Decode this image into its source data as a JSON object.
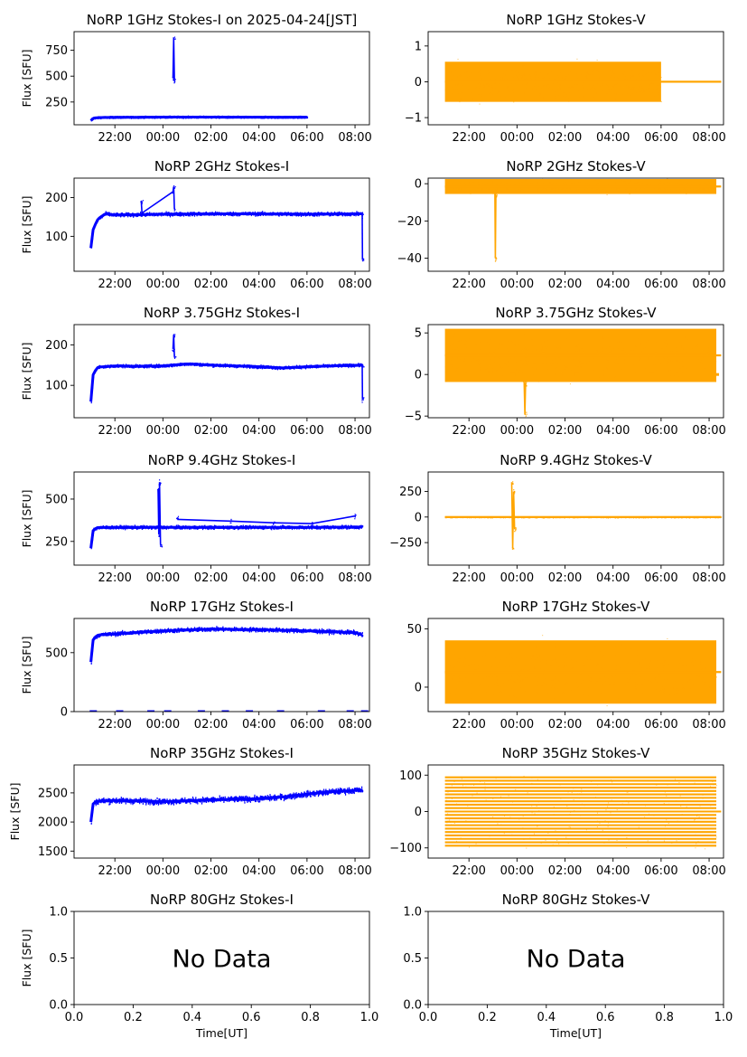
{
  "figure": {
    "suptitle_note": "",
    "colors": {
      "stokes_i": "#0000ff",
      "stokes_v": "#ffa500",
      "axis": "#000000"
    }
  },
  "chart_data": [
    {
      "id": "1ghz_i",
      "type": "scatter",
      "title": "NoRP 1GHz Stokes-I on 2025-04-24[JST]",
      "ylabel": "Flux [SFU]",
      "xlabel": "",
      "color": "#0000ff",
      "kind": "I",
      "xlim": [
        20.3,
        32.6
      ],
      "ylim": [
        30,
        930
      ],
      "x_ticks": [
        22,
        24,
        26,
        28,
        30,
        32
      ],
      "x_tick_labels": [
        "22:00",
        "00:00",
        "02:00",
        "04:00",
        "06:00",
        "08:00"
      ],
      "y_ticks": [
        250,
        500,
        750
      ],
      "y_tick_labels": [
        "250",
        "500",
        "750"
      ],
      "data_range": [
        21.0,
        30.0
      ],
      "series": [
        {
          "name": "baseline",
          "x": [
            21.0,
            21.1,
            21.4,
            22.0,
            23.0,
            24.0,
            24.5,
            26.0,
            28.0,
            30.0
          ],
          "y": [
            70,
            95,
            100,
            102,
            103,
            104,
            104,
            104,
            103,
            103
          ],
          "spread": 6
        },
        {
          "name": "burst",
          "x": [
            24.42,
            24.45,
            24.48
          ],
          "y": [
            480,
            870,
            460
          ]
        }
      ]
    },
    {
      "id": "1ghz_v",
      "type": "scatter",
      "title": "NoRP 1GHz Stokes-V",
      "ylabel": "",
      "xlabel": "",
      "color": "#ffa500",
      "kind": "V",
      "xlim": [
        20.3,
        32.6
      ],
      "ylim": [
        -1.2,
        1.4
      ],
      "x_ticks": [
        22,
        24,
        26,
        28,
        30,
        32
      ],
      "x_tick_labels": [
        "22:00",
        "00:00",
        "02:00",
        "04:00",
        "06:00",
        "08:00"
      ],
      "y_ticks": [
        -1,
        0,
        1
      ],
      "y_tick_labels": [
        "−1",
        "0",
        "1"
      ],
      "data_range": [
        21.0,
        32.5
      ],
      "series": [
        {
          "name": "noise_band",
          "x": [
            21.0,
            30.0
          ],
          "y": [
            0,
            0
          ],
          "spread": 0.35
        },
        {
          "name": "flat",
          "x": [
            30.0,
            32.5
          ],
          "y": [
            0,
            0
          ],
          "spread": 0
        }
      ]
    },
    {
      "id": "2ghz_i",
      "type": "scatter",
      "title": "NoRP 2GHz Stokes-I",
      "ylabel": "Flux [SFU]",
      "xlabel": "",
      "color": "#0000ff",
      "kind": "I",
      "xlim": [
        20.3,
        32.6
      ],
      "ylim": [
        10,
        250
      ],
      "x_ticks": [
        22,
        24,
        26,
        28,
        30,
        32
      ],
      "x_tick_labels": [
        "22:00",
        "00:00",
        "02:00",
        "04:00",
        "06:00",
        "08:00"
      ],
      "y_ticks": [
        100,
        200
      ],
      "y_tick_labels": [
        "100",
        "200"
      ],
      "data_range": [
        21.0,
        32.3
      ],
      "series": [
        {
          "name": "baseline",
          "x": [
            21.0,
            21.1,
            21.3,
            21.6,
            22.0,
            23.0,
            24.0,
            26.0,
            28.0,
            30.0,
            32.3
          ],
          "y": [
            70,
            120,
            145,
            158,
            155,
            156,
            157,
            158,
            158,
            157,
            158
          ],
          "spread": 4
        },
        {
          "name": "burst",
          "x": [
            23.1,
            23.13,
            24.42,
            24.45,
            24.48
          ],
          "y": [
            190,
            160,
            215,
            228,
            170
          ]
        },
        {
          "name": "dropout",
          "x": [
            32.3,
            32.31
          ],
          "y": [
            155,
            40
          ]
        }
      ]
    },
    {
      "id": "2ghz_v",
      "type": "scatter",
      "title": "NoRP 2GHz Stokes-V",
      "ylabel": "",
      "xlabel": "",
      "color": "#ffa500",
      "kind": "V",
      "xlim": [
        20.3,
        32.6
      ],
      "ylim": [
        -47,
        3
      ],
      "x_ticks": [
        22,
        24,
        26,
        28,
        30,
        32
      ],
      "x_tick_labels": [
        "22:00",
        "00:00",
        "02:00",
        "04:00",
        "06:00",
        "08:00"
      ],
      "y_ticks": [
        -40,
        -20,
        0
      ],
      "y_tick_labels": [
        "−40",
        "−20",
        "0"
      ],
      "data_range": [
        21.0,
        32.5
      ],
      "series": [
        {
          "name": "noise_band",
          "x": [
            21.0,
            32.3
          ],
          "y": [
            -1.5,
            -1.5
          ],
          "spread": 2.5
        },
        {
          "name": "dip",
          "x": [
            23.08,
            23.1,
            23.12
          ],
          "y": [
            -5,
            -40,
            -6
          ]
        }
      ]
    },
    {
      "id": "3_75ghz_i",
      "type": "scatter",
      "title": "NoRP 3.75GHz Stokes-I",
      "ylabel": "Flux [SFU]",
      "xlabel": "",
      "color": "#0000ff",
      "kind": "I",
      "xlim": [
        20.3,
        32.6
      ],
      "ylim": [
        20,
        250
      ],
      "x_ticks": [
        22,
        24,
        26,
        28,
        30,
        32
      ],
      "x_tick_labels": [
        "22:00",
        "00:00",
        "02:00",
        "04:00",
        "06:00",
        "08:00"
      ],
      "y_ticks": [
        100,
        200
      ],
      "y_tick_labels": [
        "100",
        "200"
      ],
      "data_range": [
        21.0,
        32.3
      ],
      "series": [
        {
          "name": "baseline",
          "x": [
            21.0,
            21.1,
            21.3,
            22.0,
            23.0,
            24.0,
            25.0,
            26.0,
            27.0,
            28.0,
            29.0,
            30.0,
            31.0,
            32.3
          ],
          "y": [
            60,
            130,
            145,
            148,
            147,
            148,
            153,
            150,
            148,
            146,
            143,
            146,
            148,
            150
          ],
          "spread": 3
        },
        {
          "name": "burst",
          "x": [
            24.42,
            24.45,
            24.48
          ],
          "y": [
            190,
            225,
            170
          ]
        },
        {
          "name": "dropout",
          "x": [
            32.3,
            32.31
          ],
          "y": [
            150,
            65
          ]
        }
      ]
    },
    {
      "id": "3_75ghz_v",
      "type": "scatter",
      "title": "NoRP 3.75GHz Stokes-V",
      "ylabel": "",
      "xlabel": "",
      "color": "#ffa500",
      "kind": "V",
      "xlim": [
        20.3,
        32.6
      ],
      "ylim": [
        -5.2,
        6
      ],
      "x_ticks": [
        22,
        24,
        26,
        28,
        30,
        32
      ],
      "x_tick_labels": [
        "22:00",
        "00:00",
        "02:00",
        "04:00",
        "06:00",
        "08:00"
      ],
      "y_ticks": [
        -5,
        0,
        5
      ],
      "y_tick_labels": [
        "−5",
        "0",
        "5"
      ],
      "data_range": [
        21.0,
        32.5
      ],
      "series": [
        {
          "name": "noise_band",
          "x": [
            21.0,
            32.3
          ],
          "y": [
            2.3,
            2.3
          ],
          "spread": 2.0
        },
        {
          "name": "dip",
          "x": [
            24.3,
            24.33,
            24.36
          ],
          "y": [
            -1,
            -4.8,
            -1
          ]
        },
        {
          "name": "gaps",
          "x": [
            23.8,
            26.5,
            29.6,
            32.3
          ],
          "y": [
            0,
            0,
            0,
            0
          ]
        }
      ]
    },
    {
      "id": "9_4ghz_i",
      "type": "scatter",
      "title": "NoRP 9.4GHz Stokes-I",
      "ylabel": "Flux [SFU]",
      "xlabel": "",
      "color": "#0000ff",
      "kind": "I",
      "xlim": [
        20.3,
        32.6
      ],
      "ylim": [
        110,
        660
      ],
      "x_ticks": [
        22,
        24,
        26,
        28,
        30,
        32
      ],
      "x_tick_labels": [
        "22:00",
        "00:00",
        "02:00",
        "04:00",
        "06:00",
        "08:00"
      ],
      "y_ticks": [
        250,
        500
      ],
      "y_tick_labels": [
        "250",
        "500"
      ],
      "data_range": [
        21.0,
        32.3
      ],
      "series": [
        {
          "name": "baseline",
          "x": [
            21.0,
            21.1,
            21.3,
            22.0,
            24.0,
            26.0,
            28.0,
            30.0,
            32.3
          ],
          "y": [
            210,
            320,
            332,
            333,
            333,
            333,
            333,
            333,
            335
          ],
          "spread": 8
        },
        {
          "name": "burst",
          "x": [
            23.8,
            23.83,
            23.86,
            23.9
          ],
          "y": [
            560,
            290,
            600,
            230
          ]
        },
        {
          "name": "small_bursts",
          "x": [
            24.6,
            26.8,
            28.6,
            30.2,
            32.0
          ],
          "y": [
            380,
            370,
            360,
            355,
            400
          ]
        }
      ]
    },
    {
      "id": "9_4ghz_v",
      "type": "scatter",
      "title": "NoRP 9.4GHz Stokes-V",
      "ylabel": "",
      "xlabel": "",
      "color": "#ffa500",
      "kind": "V",
      "xlim": [
        20.3,
        32.6
      ],
      "ylim": [
        -470,
        440
      ],
      "x_ticks": [
        22,
        24,
        26,
        28,
        30,
        32
      ],
      "x_tick_labels": [
        "22:00",
        "00:00",
        "02:00",
        "04:00",
        "06:00",
        "08:00"
      ],
      "y_ticks": [
        -250,
        0,
        250
      ],
      "y_tick_labels": [
        "−250",
        "0",
        "250"
      ],
      "data_range": [
        21.0,
        32.5
      ],
      "series": [
        {
          "name": "noise_band",
          "x": [
            21.0,
            32.5
          ],
          "y": [
            0,
            0
          ],
          "spread": 5
        },
        {
          "name": "burst",
          "x": [
            23.78,
            23.82,
            23.86,
            23.9
          ],
          "y": [
            340,
            -300,
            250,
            -120
          ]
        }
      ]
    },
    {
      "id": "17ghz_i",
      "type": "scatter",
      "title": "NoRP 17GHz Stokes-I",
      "ylabel": "Flux [SFU]",
      "xlabel": "",
      "color": "#0000ff",
      "kind": "I",
      "xlim": [
        20.3,
        32.6
      ],
      "ylim": [
        0,
        790
      ],
      "x_ticks": [
        22,
        24,
        26,
        28,
        30,
        32
      ],
      "x_tick_labels": [
        "22:00",
        "00:00",
        "02:00",
        "04:00",
        "06:00",
        "08:00"
      ],
      "y_ticks": [
        0,
        500
      ],
      "y_tick_labels": [
        "0",
        "500"
      ],
      "data_range": [
        21.0,
        32.3
      ],
      "series": [
        {
          "name": "baseline",
          "x": [
            21.0,
            21.1,
            21.3,
            22.0,
            24.0,
            26.0,
            28.0,
            30.0,
            32.0,
            32.3
          ],
          "y": [
            420,
            620,
            650,
            660,
            685,
            700,
            695,
            685,
            670,
            650
          ],
          "spread": 15
        },
        {
          "name": "zero_markers",
          "x": [
            21.1,
            22.2,
            23.5,
            24.2,
            25.6,
            26.6,
            27.6,
            28.9,
            30.6,
            31.8,
            32.4
          ],
          "y": [
            0,
            0,
            0,
            0,
            0,
            0,
            0,
            0,
            0,
            0,
            0
          ]
        }
      ]
    },
    {
      "id": "17ghz_v",
      "type": "scatter",
      "title": "NoRP 17GHz Stokes-V",
      "ylabel": "",
      "xlabel": "",
      "color": "#ffa500",
      "kind": "V",
      "xlim": [
        20.3,
        32.6
      ],
      "ylim": [
        -21,
        59
      ],
      "x_ticks": [
        22,
        24,
        26,
        28,
        30,
        32
      ],
      "x_tick_labels": [
        "22:00",
        "00:00",
        "02:00",
        "04:00",
        "06:00",
        "08:00"
      ],
      "y_ticks": [
        0,
        50
      ],
      "y_tick_labels": [
        "0",
        "50"
      ],
      "data_range": [
        21.0,
        32.5
      ],
      "series": [
        {
          "name": "noise_band",
          "x": [
            21.0,
            32.3
          ],
          "y": [
            13,
            13
          ],
          "spread": 17
        }
      ]
    },
    {
      "id": "35ghz_i",
      "type": "scatter",
      "title": "NoRP 35GHz Stokes-I",
      "ylabel": "Flux [SFU]",
      "xlabel": "",
      "color": "#0000ff",
      "kind": "I",
      "xlim": [
        20.3,
        32.6
      ],
      "ylim": [
        1380,
        2980
      ],
      "x_ticks": [
        22,
        24,
        26,
        28,
        30,
        32
      ],
      "x_tick_labels": [
        "22:00",
        "00:00",
        "02:00",
        "04:00",
        "06:00",
        "08:00"
      ],
      "y_ticks": [
        1500,
        2000,
        2500
      ],
      "y_tick_labels": [
        "1500",
        "2000",
        "2500"
      ],
      "data_range": [
        21.0,
        32.3
      ],
      "series": [
        {
          "name": "baseline",
          "x": [
            21.0,
            21.1,
            21.3,
            22.0,
            24.0,
            26.0,
            28.0,
            29.0,
            30.0,
            31.0,
            32.3
          ],
          "y": [
            2000,
            2330,
            2360,
            2370,
            2350,
            2380,
            2400,
            2430,
            2480,
            2520,
            2550
          ],
          "spread": 45
        }
      ]
    },
    {
      "id": "35ghz_v",
      "type": "scatter",
      "title": "NoRP 35GHz Stokes-V",
      "ylabel": "",
      "xlabel": "",
      "color": "#ffa500",
      "kind": "V",
      "xlim": [
        20.3,
        32.6
      ],
      "ylim": [
        -128,
        128
      ],
      "x_ticks": [
        22,
        24,
        26,
        28,
        30,
        32
      ],
      "x_tick_labels": [
        "22:00",
        "00:00",
        "02:00",
        "04:00",
        "06:00",
        "08:00"
      ],
      "y_ticks": [
        -100,
        0,
        100
      ],
      "y_tick_labels": [
        "−100",
        "0",
        "100"
      ],
      "data_range": [
        21.0,
        32.5
      ],
      "series": [
        {
          "name": "quantized_bands",
          "x": [
            21.0,
            32.3
          ],
          "y": [
            -94,
            94
          ],
          "spread": 0,
          "step": 9.4
        }
      ]
    },
    {
      "id": "80ghz_i",
      "type": "scatter",
      "title": "NoRP 80GHz Stokes-I",
      "ylabel": "Flux [SFU]",
      "xlabel": "Time[UT]",
      "color": "#0000ff",
      "kind": "empty",
      "xlim": [
        0,
        1
      ],
      "ylim": [
        0,
        1
      ],
      "x_ticks": [
        0,
        0.2,
        0.4,
        0.6,
        0.8,
        1.0
      ],
      "x_tick_labels": [
        "0.0",
        "0.2",
        "0.4",
        "0.6",
        "0.8",
        "1.0"
      ],
      "y_ticks": [
        0,
        0.5,
        1.0
      ],
      "y_tick_labels": [
        "0.0",
        "0.5",
        "1.0"
      ],
      "message": "No Data",
      "series": []
    },
    {
      "id": "80ghz_v",
      "type": "scatter",
      "title": "NoRP 80GHz Stokes-V",
      "ylabel": "",
      "xlabel": "Time[UT]",
      "color": "#ffa500",
      "kind": "empty",
      "xlim": [
        0,
        1
      ],
      "ylim": [
        0,
        1
      ],
      "x_ticks": [
        0,
        0.2,
        0.4,
        0.6,
        0.8,
        1.0
      ],
      "x_tick_labels": [
        "0.0",
        "0.2",
        "0.4",
        "0.6",
        "0.8",
        "1.0"
      ],
      "y_ticks": [
        0,
        0.5,
        1.0
      ],
      "y_tick_labels": [
        "0.0",
        "0.5",
        "1.0"
      ],
      "message": "No Data",
      "series": []
    }
  ]
}
